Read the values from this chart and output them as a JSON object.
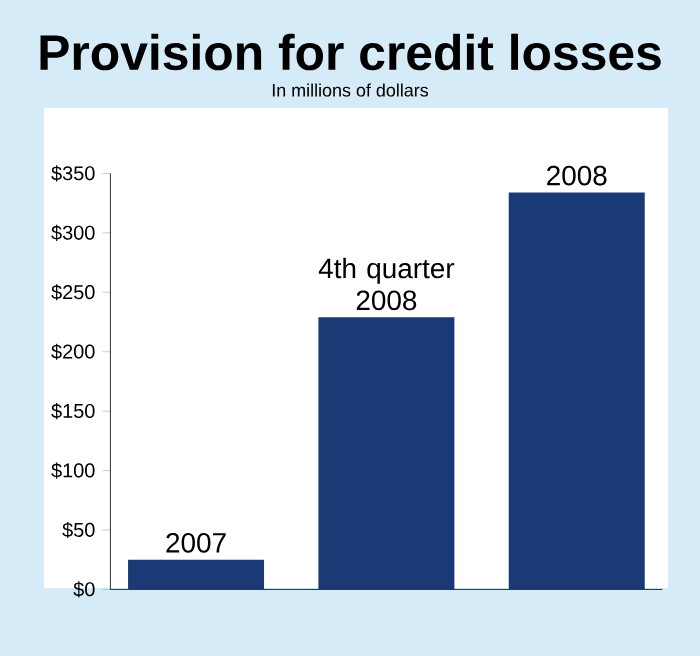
{
  "chart_data": {
    "type": "bar",
    "title": "Provision for credit losses",
    "subtitle": "In millions of dollars",
    "categories": [
      "2007",
      "4th quarter 2008",
      "2008"
    ],
    "values": [
      25,
      229,
      334
    ],
    "color": "#1b3a75",
    "ylim": [
      0,
      350
    ],
    "yticks": [
      {
        "value": 0,
        "label": "$0"
      },
      {
        "value": 50,
        "label": "$50"
      },
      {
        "value": 100,
        "label": "$100"
      },
      {
        "value": 150,
        "label": "$150"
      },
      {
        "value": 200,
        "label": "$200"
      },
      {
        "value": 250,
        "label": "$250"
      },
      {
        "value": 300,
        "label": "$300"
      },
      {
        "value": 350,
        "label": "$350"
      }
    ],
    "grid": false
  }
}
